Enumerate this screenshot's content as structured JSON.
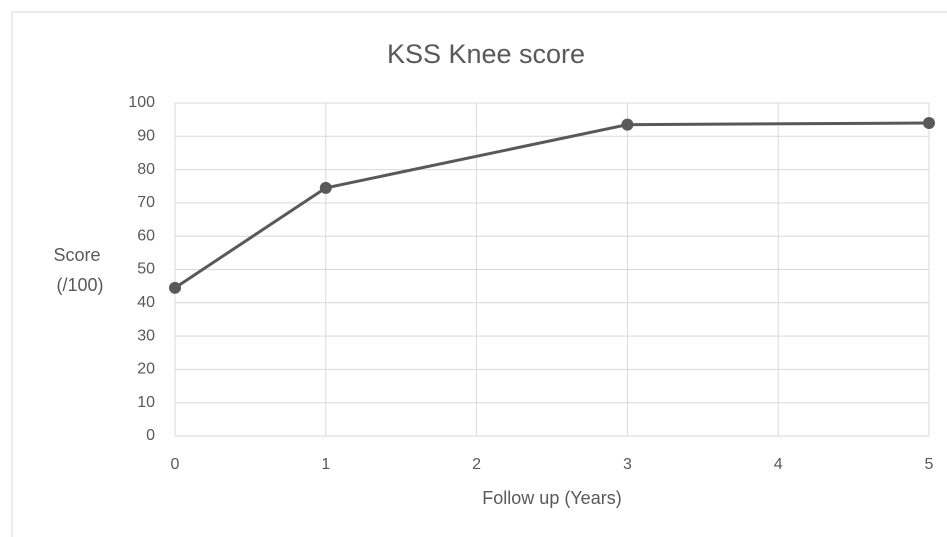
{
  "chart_data": {
    "type": "line",
    "title": "KSS Knee score",
    "xlabel": "Follow up (Years)",
    "ylabel": [
      "Score",
      "(/100)"
    ],
    "x": [
      0,
      1,
      3,
      5
    ],
    "series": [
      {
        "name": "KSS Knee score",
        "color": "#595959",
        "values": [
          44.5,
          74.5,
          93.5,
          94
        ]
      }
    ],
    "xlim": [
      0,
      5
    ],
    "xticks": [
      0,
      1,
      2,
      3,
      4,
      5
    ],
    "ylim": [
      0,
      100
    ],
    "yticks": [
      0,
      10,
      20,
      30,
      40,
      50,
      60,
      70,
      80,
      90,
      100
    ],
    "grid": true
  }
}
